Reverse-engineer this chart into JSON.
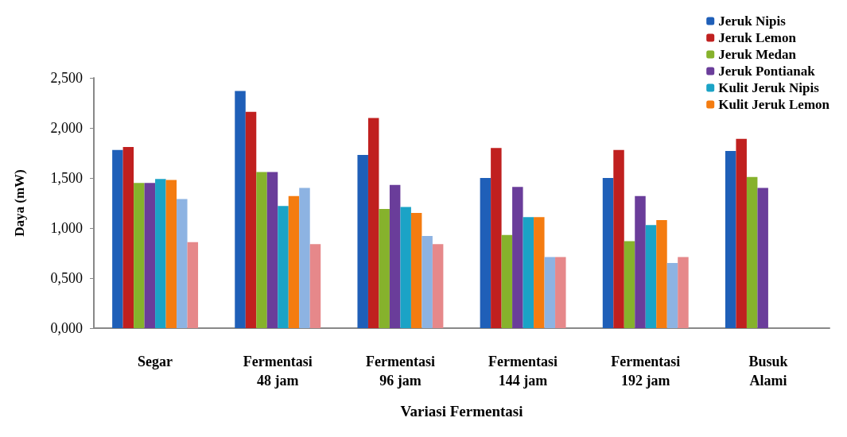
{
  "chart_data": {
    "type": "bar",
    "xlabel": "Variasi Fermentasi",
    "ylabel": "Daya (mW)",
    "categories": [
      "Segar",
      "Fermentasi\n48 jam",
      "Fermentasi\n96 jam",
      "Fermentasi\n144 jam",
      "Fermentasi\n192 jam",
      "Busuk\nAlami"
    ],
    "series": [
      {
        "name": "Jeruk Nipis",
        "color": "#1f5fb8",
        "values": [
          1.78,
          2.37,
          1.73,
          1.5,
          1.5,
          1.77
        ]
      },
      {
        "name": "Jeruk Lemon",
        "color": "#c0201f",
        "values": [
          1.81,
          2.16,
          2.1,
          1.8,
          1.78,
          1.89
        ]
      },
      {
        "name": "Jeruk Medan",
        "color": "#86b22c",
        "values": [
          1.45,
          1.56,
          1.19,
          0.93,
          0.87,
          1.51
        ]
      },
      {
        "name": "Jeruk Pontianak",
        "color": "#6a3d9a",
        "values": [
          1.45,
          1.56,
          1.43,
          1.41,
          1.32,
          1.4
        ]
      },
      {
        "name": "Kulit Jeruk Nipis",
        "color": "#1ba3c6",
        "values": [
          1.49,
          1.22,
          1.21,
          1.11,
          1.03,
          null
        ]
      },
      {
        "name": "Kulit Jeruk Lemon",
        "color": "#f47c10",
        "values": [
          1.48,
          1.32,
          1.15,
          1.11,
          1.08,
          null
        ]
      },
      {
        "color": "#8db3e2",
        "values": [
          1.29,
          1.4,
          0.92,
          0.71,
          0.65,
          null
        ]
      },
      {
        "color": "#e6888a",
        "values": [
          0.86,
          0.84,
          0.84,
          0.71,
          0.71,
          null
        ]
      }
    ],
    "ylim": [
      0,
      2.5
    ],
    "yticks": [
      {
        "value": 0,
        "label": "0,000"
      },
      {
        "value": 0.5,
        "label": "0,500"
      },
      {
        "value": 1,
        "label": "1,000"
      },
      {
        "value": 1.5,
        "label": "1,500"
      },
      {
        "value": 2,
        "label": "2,000"
      },
      {
        "value": 2.5,
        "label": "2,500"
      }
    ],
    "grid": false,
    "legend": "top right"
  }
}
